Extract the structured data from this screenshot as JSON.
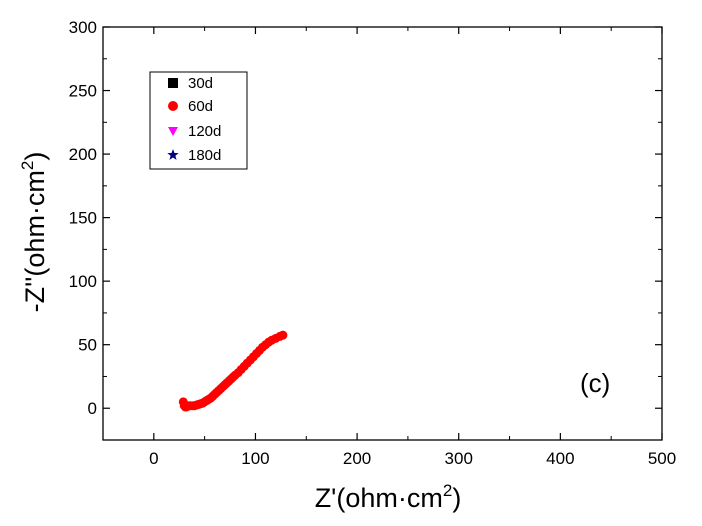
{
  "chart_data": {
    "type": "scatter",
    "xlabel": "Z'(ohm·cm",
    "xlabel_sup": "2",
    "xlabel_close": ")",
    "ylabel": "-Z''(ohm·cm",
    "ylabel_sup": "2",
    "ylabel_close": ")",
    "xlim": [
      -50,
      500
    ],
    "ylim": [
      -25,
      300
    ],
    "xticks": [
      0,
      100,
      200,
      300,
      400,
      500
    ],
    "yticks": [
      0,
      50,
      100,
      150,
      200,
      250,
      300
    ],
    "grid": false,
    "legend_position": "top-left",
    "annotation": "(c)",
    "series": [
      {
        "name": "30d",
        "marker": "square",
        "color": "#000000",
        "x": [],
        "y": []
      },
      {
        "name": "60d",
        "marker": "circle",
        "color": "#ff0000",
        "x": [
          29,
          30,
          31,
          32,
          33,
          34,
          36,
          38,
          40,
          42,
          44,
          46,
          48,
          50,
          52,
          54,
          56,
          58,
          60,
          62,
          64,
          66,
          68,
          70,
          72,
          74,
          76,
          78,
          80,
          83,
          86,
          89,
          92,
          95,
          98,
          101,
          104,
          107,
          110,
          113,
          116,
          120,
          124,
          127
        ],
        "y": [
          5,
          2,
          1,
          1,
          1.5,
          2,
          2,
          2,
          2,
          2.5,
          3,
          3.5,
          4,
          5,
          6,
          7,
          8,
          9.5,
          11,
          12.5,
          14,
          15.5,
          17,
          18.5,
          20,
          21.5,
          23,
          24.5,
          26,
          28,
          30.5,
          33,
          35.5,
          38,
          40.5,
          43,
          45.5,
          48,
          50,
          52,
          53.5,
          55,
          56.5,
          57.5
        ]
      },
      {
        "name": "120d",
        "marker": "triangle-down",
        "color": "#ff00ff",
        "x": [],
        "y": []
      },
      {
        "name": "180d",
        "marker": "star",
        "color": "#000080",
        "x": [],
        "y": []
      }
    ]
  }
}
